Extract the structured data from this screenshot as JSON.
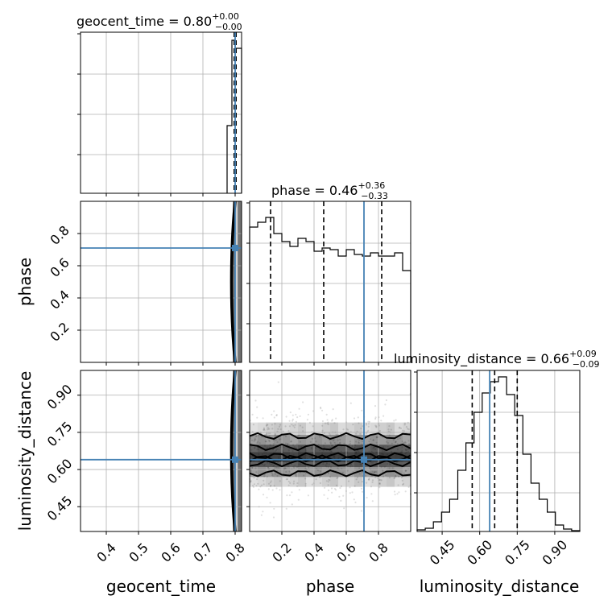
{
  "chart_data": {
    "type": "corner",
    "params": [
      "geocent_time",
      "phase",
      "luminosity_distance"
    ],
    "titles": [
      {
        "name": "geocent_time",
        "prefix": "geocent_time = 0.80",
        "plus": "+0.00",
        "minus": "−0.00"
      },
      {
        "name": "phase",
        "prefix": "phase = 0.46",
        "plus": "+0.36",
        "minus": "−0.33"
      },
      {
        "name": "luminosity_distance",
        "prefix": "luminosity_distance = 0.66",
        "plus": "+0.09",
        "minus": "−0.09"
      }
    ],
    "xlabels": [
      "geocent_time",
      "phase",
      "luminosity_distance"
    ],
    "ylabels": [
      "phase",
      "luminosity_distance"
    ],
    "ranges": {
      "geocent_time": [
        0.32,
        0.82
      ],
      "phase": [
        0.0,
        1.0
      ],
      "luminosity_distance": [
        0.35,
        1.0
      ]
    },
    "ticks": {
      "geocent_time": [
        "0.4",
        "0.5",
        "0.6",
        "0.7",
        "0.8"
      ],
      "phase": [
        "0.2",
        "0.4",
        "0.6",
        "0.8"
      ],
      "luminosity_distance": [
        "0.45",
        "0.60",
        "0.75",
        "0.90"
      ]
    },
    "truths": {
      "geocent_time": 0.8,
      "phase": 0.71,
      "luminosity_distance": 0.64
    },
    "quantiles": {
      "geocent_time": [
        0.797,
        0.8,
        0.803
      ],
      "phase": [
        0.13,
        0.46,
        0.82
      ],
      "luminosity_distance": [
        0.57,
        0.66,
        0.75
      ]
    },
    "histograms": {
      "geocent_time": {
        "edges": [
          0.775,
          0.79,
          0.8,
          0.82
        ],
        "counts": [
          0.42,
          0.95,
          0.9
        ]
      },
      "phase": {
        "edges": [
          0.0,
          0.05,
          0.1,
          0.15,
          0.2,
          0.25,
          0.3,
          0.35,
          0.4,
          0.45,
          0.5,
          0.55,
          0.6,
          0.65,
          0.7,
          0.75,
          0.8,
          0.85,
          0.9,
          0.95,
          1.0
        ],
        "counts": [
          0.84,
          0.87,
          0.9,
          0.8,
          0.75,
          0.72,
          0.77,
          0.75,
          0.69,
          0.71,
          0.7,
          0.66,
          0.7,
          0.67,
          0.66,
          0.68,
          0.66,
          0.66,
          0.68,
          0.57
        ]
      },
      "luminosity_distance": {
        "edges": [
          0.35,
          0.3825,
          0.415,
          0.4475,
          0.48,
          0.5125,
          0.545,
          0.5775,
          0.61,
          0.6425,
          0.675,
          0.7075,
          0.74,
          0.7725,
          0.805,
          0.8375,
          0.87,
          0.9025,
          0.935,
          0.9675,
          1.0
        ],
        "counts": [
          0.01,
          0.02,
          0.06,
          0.12,
          0.2,
          0.38,
          0.55,
          0.74,
          0.86,
          0.93,
          0.96,
          0.85,
          0.72,
          0.48,
          0.3,
          0.2,
          0.12,
          0.04,
          0.015,
          0.005
        ]
      }
    },
    "grid": true
  }
}
